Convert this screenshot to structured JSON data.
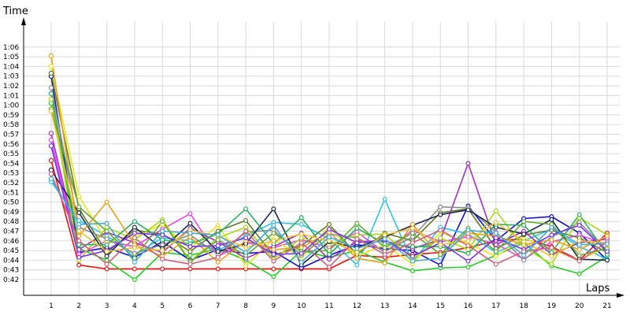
{
  "chart_data": {
    "type": "line",
    "xlabel": "Laps",
    "ylabel": "Time",
    "x": [
      1,
      2,
      3,
      4,
      5,
      6,
      7,
      8,
      9,
      10,
      11,
      12,
      13,
      14,
      15,
      16,
      17,
      18,
      19,
      20,
      21
    ],
    "ylim": [
      41,
      67
    ],
    "grid": true,
    "y_ticks": [
      {
        "v": 42,
        "label": "0:42"
      },
      {
        "v": 43,
        "label": "0:43"
      },
      {
        "v": 44,
        "label": "0:44"
      },
      {
        "v": 45,
        "label": "0:45"
      },
      {
        "v": 46,
        "label": "0:46"
      },
      {
        "v": 47,
        "label": "0:47"
      },
      {
        "v": 48,
        "label": "0:48"
      },
      {
        "v": 49,
        "label": "0:49"
      },
      {
        "v": 50,
        "label": "0:50"
      },
      {
        "v": 51,
        "label": "0:51"
      },
      {
        "v": 52,
        "label": "0:52"
      },
      {
        "v": 53,
        "label": "0:53"
      },
      {
        "v": 54,
        "label": "0:54"
      },
      {
        "v": 55,
        "label": "0:55"
      },
      {
        "v": 56,
        "label": "0:56"
      },
      {
        "v": 57,
        "label": "0:57"
      },
      {
        "v": 58,
        "label": "0:58"
      },
      {
        "v": 59,
        "label": "0:59"
      },
      {
        "v": 60,
        "label": "1:00"
      },
      {
        "v": 61,
        "label": "1:01"
      },
      {
        "v": 62,
        "label": "1:02"
      },
      {
        "v": 63,
        "label": "1:03"
      },
      {
        "v": 64,
        "label": "1:04"
      },
      {
        "v": 65,
        "label": "1:05"
      },
      {
        "v": 66,
        "label": "1:06"
      }
    ],
    "series": [
      {
        "color": "#ee1111",
        "values": [
          54.3,
          43.5,
          43.1,
          43.1,
          43.1,
          43.1,
          43.1,
          43.1,
          43.1,
          43.1,
          43.1,
          44.5,
          44.3,
          44.6,
          44.8,
          45.3,
          46.0,
          46.2,
          45.4,
          44.0,
          46.8
        ]
      },
      {
        "color": "#22cc22",
        "values": [
          60.2,
          45.2,
          44.0,
          42.0,
          44.8,
          44.5,
          45.2,
          44.0,
          42.3,
          45.0,
          44.3,
          45.0,
          43.8,
          42.9,
          43.2,
          43.3,
          44.5,
          45.8,
          43.4,
          42.6,
          44.4
        ]
      },
      {
        "color": "#1111cc",
        "values": [
          63.0,
          44.8,
          45.3,
          44.3,
          45.9,
          44.0,
          45.1,
          44.7,
          44.9,
          43.2,
          44.5,
          45.6,
          45.2,
          45.0,
          43.5,
          49.6,
          46.0,
          48.3,
          48.5,
          46.8,
          44.0
        ]
      },
      {
        "color": "#2ec4e8",
        "values": [
          52.1,
          48.1,
          46.5,
          44.6,
          46.3,
          46.0,
          45.0,
          46.5,
          47.9,
          47.7,
          46.2,
          43.5,
          50.3,
          43.8,
          47.4,
          46.7,
          44.8,
          46.0,
          47.2,
          45.4,
          44.1
        ]
      },
      {
        "color": "#ee44ee",
        "values": [
          56.4,
          44.6,
          46.0,
          45.4,
          47.2,
          48.8,
          44.4,
          45.8,
          45.3,
          46.1,
          45.3,
          46.9,
          44.8,
          47.1,
          45.9,
          46.4,
          45.7,
          44.1,
          45.9,
          46.6,
          45.6
        ]
      },
      {
        "color": "#e8e817",
        "values": [
          64.0,
          50.6,
          45.9,
          46.5,
          47.7,
          45.2,
          47.6,
          43.4,
          46.2,
          44.2,
          47.5,
          44.4,
          45.6,
          43.6,
          46.9,
          45.7,
          44.4,
          46.3,
          45.1,
          44.0,
          45.4
        ]
      },
      {
        "color": "#5f7a2a",
        "values": [
          63.3,
          49.3,
          44.8,
          47.1,
          46.7,
          44.9,
          47.0,
          48.1,
          44.5,
          45.5,
          47.7,
          44.6,
          46.8,
          46.0,
          48.9,
          49.3,
          45.2,
          46.6,
          47.1,
          46.3,
          44.8
        ]
      },
      {
        "color": "#a030c0",
        "values": [
          57.1,
          45.1,
          46.9,
          45.8,
          44.8,
          47.3,
          45.9,
          44.2,
          45.4,
          46.8,
          44.1,
          45.9,
          46.0,
          45.2,
          46.1,
          54.0,
          45.6,
          47.0,
          44.6,
          45.8,
          46.2
        ]
      },
      {
        "color": "#8a8a8a",
        "values": [
          61.8,
          47.4,
          46.2,
          44.7,
          45.6,
          46.6,
          44.6,
          46.9,
          47.1,
          44.5,
          46.7,
          46.3,
          44.9,
          46.4,
          49.5,
          49.4,
          46.9,
          44.0,
          46.4,
          47.9,
          45.0
        ]
      },
      {
        "color": "#a8d818",
        "values": [
          60.6,
          44.0,
          47.4,
          46.1,
          48.2,
          43.9,
          46.3,
          47.4,
          44.1,
          46.3,
          45.6,
          46.6,
          46.7,
          44.1,
          46.3,
          45.1,
          49.1,
          45.3,
          43.6,
          48.4,
          46.6
        ]
      },
      {
        "color": "#1c2850",
        "values": [
          53.3,
          48.9,
          44.4,
          47.4,
          45.2,
          47.8,
          44.9,
          45.7,
          49.3,
          43.5,
          45.9,
          45.3,
          46.4,
          47.6,
          48.7,
          49.2,
          47.4,
          46.7,
          48.2,
          44.1,
          44.0
        ]
      },
      {
        "color": "#2ab060",
        "values": [
          61.2,
          45.6,
          45.6,
          48.0,
          46.1,
          45.7,
          46.7,
          49.3,
          45.7,
          48.4,
          44.6,
          47.3,
          45.7,
          45.4,
          45.4,
          44.7,
          47.7,
          47.6,
          44.8,
          48.7,
          44.6
        ]
      },
      {
        "color": "#e8a020",
        "values": [
          65.1,
          46.5,
          50.0,
          45.6,
          44.4,
          46.4,
          43.8,
          46.0,
          45.1,
          45.3,
          46.9,
          44.2,
          43.7,
          47.7,
          44.4,
          46.8,
          46.5,
          45.6,
          46.1,
          45.1,
          46.5
        ]
      },
      {
        "color": "#66aa33",
        "values": [
          59.6,
          49.5,
          47.0,
          44.2,
          48.0,
          43.8,
          46.1,
          44.5,
          46.8,
          44.9,
          45.0,
          47.8,
          45.3,
          46.8,
          44.6,
          47.3,
          44.9,
          48.0,
          47.7,
          44.5,
          45.2
        ]
      },
      {
        "color": "#7733ee",
        "values": [
          55.8,
          44.3,
          45.0,
          46.8,
          46.6,
          45.4,
          45.5,
          46.3,
          44.6,
          44.7,
          47.2,
          45.8,
          46.1,
          44.4,
          45.8,
          43.9,
          46.3,
          45.1,
          46.6,
          47.6,
          44.9
        ]
      },
      {
        "color": "#f0c030",
        "values": [
          59.4,
          47.0,
          44.9,
          45.3,
          45.0,
          47.1,
          46.5,
          45.3,
          46.0,
          46.7,
          46.0,
          44.8,
          46.6,
          47.3,
          45.6,
          46.0,
          47.9,
          45.9,
          44.4,
          46.0,
          45.8
        ]
      },
      {
        "color": "#d06080",
        "values": [
          52.9,
          46.0,
          43.6,
          46.3,
          44.1,
          43.6,
          44.3,
          47.0,
          43.9,
          45.8,
          43.3,
          46.2,
          44.6,
          45.8,
          47.1,
          45.5,
          43.6,
          44.9,
          45.3,
          43.9,
          45.9
        ]
      },
      {
        "color": "#44aadd",
        "values": [
          52.4,
          47.7,
          47.8,
          43.8,
          47.0,
          46.8,
          46.6,
          44.8,
          47.6,
          43.8,
          46.4,
          45.2,
          46.2,
          43.9,
          44.2,
          47.1,
          46.8,
          44.5,
          47.4,
          45.6,
          45.7
        ]
      }
    ]
  }
}
